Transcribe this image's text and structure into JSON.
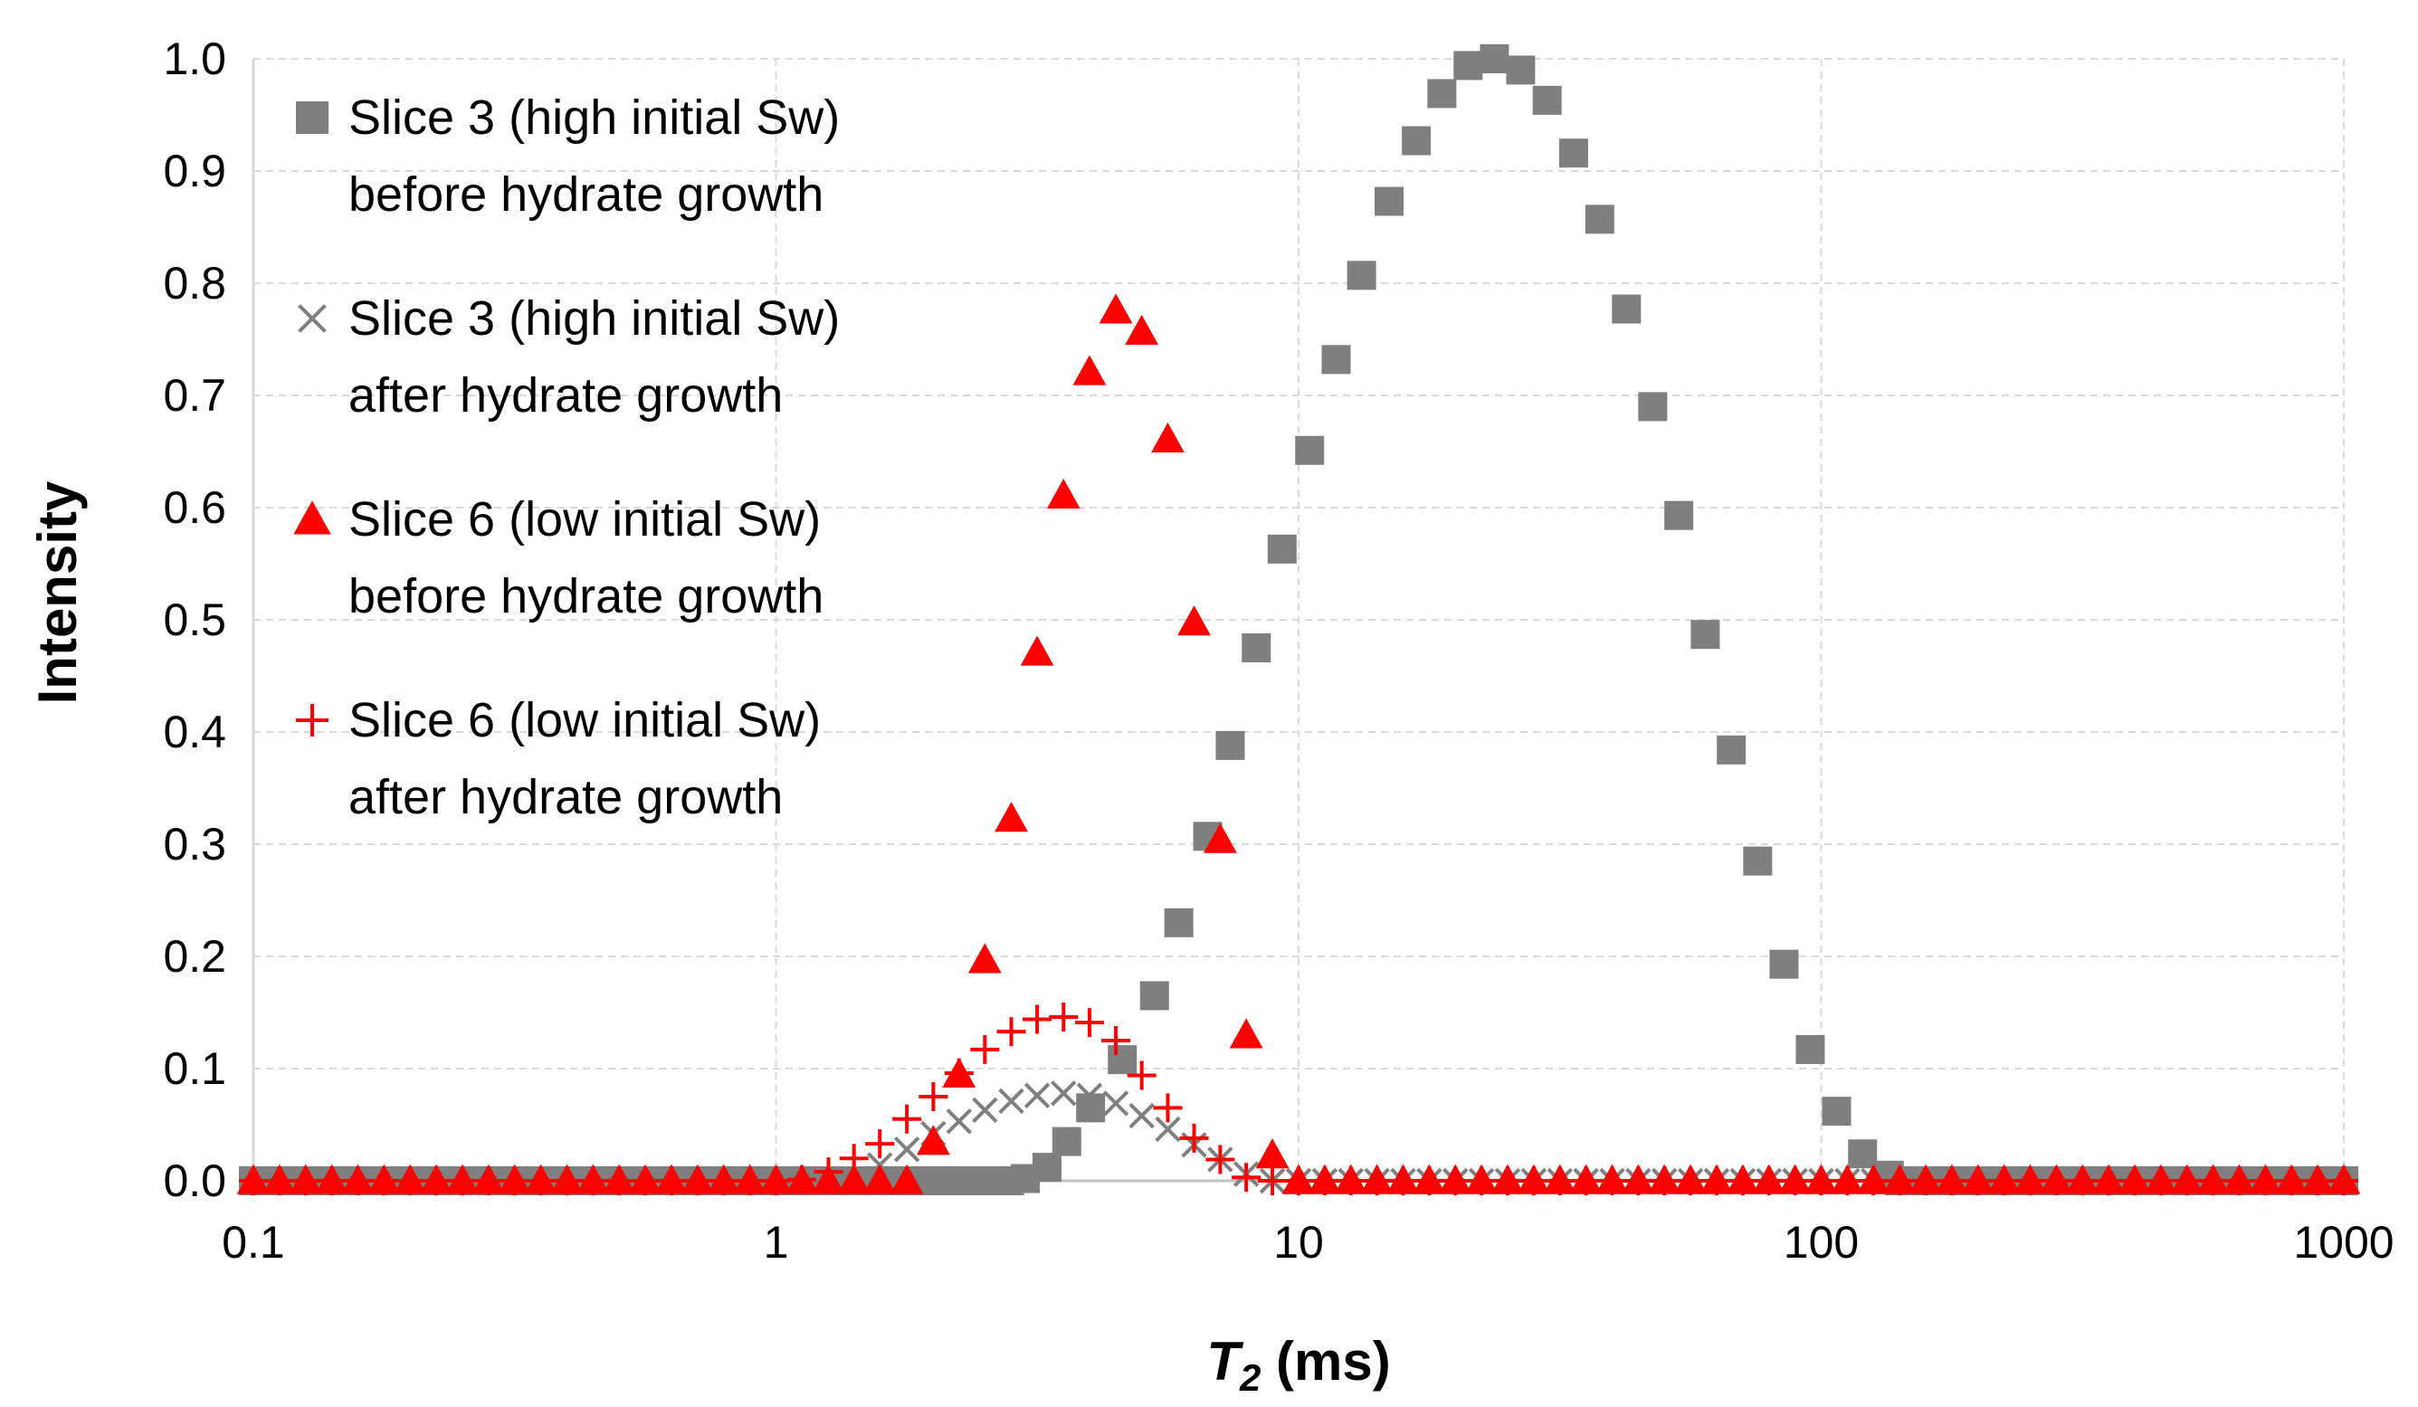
{
  "chart_data": {
    "type": "scatter",
    "xscale": "log",
    "xlim": [
      0.1,
      1000
    ],
    "ylim": [
      0,
      1
    ],
    "xticks": [
      "0.1",
      "1",
      "10",
      "100",
      "1000"
    ],
    "yticks": [
      "0.0",
      "0.1",
      "0.2",
      "0.3",
      "0.4",
      "0.5",
      "0.6",
      "0.7",
      "0.8",
      "0.9",
      "1.0"
    ],
    "xlabel_main": "T",
    "xlabel_sub": "2",
    "xlabel_unit": " (ms)",
    "ylabel": "Intensity",
    "grid": "dashed",
    "legend_position": "top-left",
    "legend": [
      {
        "marker": "square",
        "color": "#7f7f7f",
        "line1": "Slice 3 (high initial Sw)",
        "line2": "before hydrate growth"
      },
      {
        "marker": "x",
        "color": "#7f7f7f",
        "line1": "Slice 3 (high initial Sw)",
        "line2": "after hydrate growth"
      },
      {
        "marker": "triangle",
        "color": "#ff0000",
        "line1": "Slice 6 (low initial Sw)",
        "line2": "before hydrate growth"
      },
      {
        "marker": "plus",
        "color": "#ff0000",
        "line1": "Slice 6 (low initial Sw)",
        "line2": "after hydrate growth"
      }
    ],
    "series": [
      {
        "marker": "square",
        "color": "#7f7f7f",
        "peaks": [
          {
            "x": [
              2.0,
              2.2,
              2.4,
              2.6,
              2.8,
              3.0,
              3.3,
              3.6,
              4.0,
              4.6,
              5.3,
              5.9,
              6.7,
              7.4,
              8.3,
              9.3,
              10.5,
              11.8,
              13.2,
              14.9,
              16.8,
              18.8,
              21.1,
              23.7,
              26.6,
              29.9,
              33.6,
              37.7,
              42.4,
              47.6,
              53.4,
              60,
              67.3,
              75.6,
              84.9,
              95.3,
              107,
              120,
              135
            ]
          },
          {
            "y": [
              0.0,
              0.0,
              0.0,
              0.0,
              0.0,
              0.002,
              0.012,
              0.035,
              0.065,
              0.108,
              0.165,
              0.23,
              0.307,
              0.388,
              0.475,
              0.563,
              0.651,
              0.732,
              0.807,
              0.873,
              0.927,
              0.969,
              0.994,
              1.0,
              0.99,
              0.963,
              0.916,
              0.857,
              0.777,
              0.69,
              0.593,
              0.487,
              0.384,
              0.285,
              0.193,
              0.117,
              0.062,
              0.024,
              0.005
            ]
          }
        ]
      },
      {
        "marker": "x",
        "color": "#7f7f7f",
        "peaks": [
          {
            "x": [
              1.41,
              1.58,
              1.78,
              2.0,
              2.24,
              2.51,
              2.82,
              3.16,
              3.55,
              3.98,
              4.47,
              5.01,
              5.62,
              6.31,
              7.08,
              7.94,
              8.91
            ]
          },
          {
            "y": [
              0.001,
              0.014,
              0.028,
              0.042,
              0.053,
              0.063,
              0.071,
              0.076,
              0.078,
              0.076,
              0.069,
              0.058,
              0.046,
              0.032,
              0.019,
              0.006,
              0.0
            ]
          }
        ]
      },
      {
        "marker": "triangle",
        "color": "#ff0000",
        "peaks": [
          {
            "x": [
              1.41,
              1.58,
              1.78,
              2.0,
              2.24,
              2.51,
              2.82,
              3.16,
              3.55,
              3.98,
              4.47,
              5.01,
              5.62,
              6.31,
              7.08,
              7.94,
              8.91,
              10.0
            ]
          },
          {
            "y": [
              0.0,
              0.0,
              0.0,
              0.035,
              0.095,
              0.197,
              0.323,
              0.471,
              0.611,
              0.721,
              0.776,
              0.757,
              0.661,
              0.498,
              0.304,
              0.13,
              0.023,
              0.0
            ]
          }
        ]
      },
      {
        "marker": "plus",
        "color": "#ff0000",
        "peaks": [
          {
            "x": [
              1.12,
              1.26,
              1.41,
              1.58,
              1.78,
              2.0,
              2.24,
              2.51,
              2.82,
              3.16,
              3.55,
              3.98,
              4.47,
              5.01,
              5.62,
              6.31,
              7.08,
              7.94,
              8.91
            ]
          },
          {
            "y": [
              0.001,
              0.008,
              0.02,
              0.033,
              0.055,
              0.075,
              0.096,
              0.117,
              0.133,
              0.144,
              0.146,
              0.141,
              0.125,
              0.094,
              0.065,
              0.038,
              0.019,
              0.003,
              0.0
            ]
          }
        ]
      }
    ]
  }
}
